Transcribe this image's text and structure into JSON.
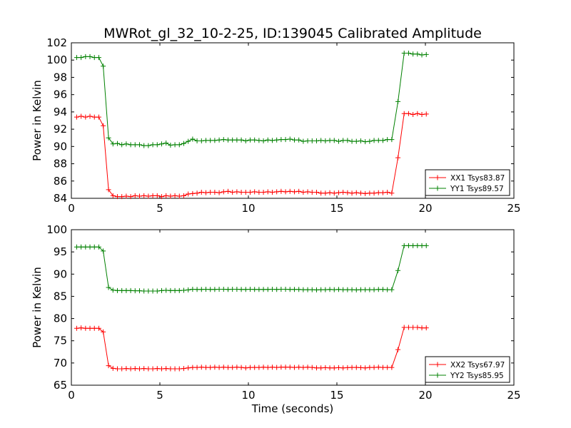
{
  "title": "MWRot_gl_32_10-2-25, ID:139045 Calibrated Amplitude",
  "colors": {
    "xx": "#ff0000",
    "yy": "#008000",
    "axes": "#000000"
  },
  "chart_data": [
    {
      "type": "line",
      "title": "MWRot_gl_32_10-2-25, ID:139045 Calibrated Amplitude",
      "xlabel": "",
      "ylabel": "Power in Kelvin",
      "xlim": [
        0,
        25
      ],
      "ylim": [
        84,
        102
      ],
      "xticks": [
        0,
        5,
        10,
        15,
        20,
        25
      ],
      "xtick_labels": [
        "0",
        "5",
        "10",
        "15",
        "20",
        "25"
      ],
      "yticks": [
        84,
        86,
        88,
        90,
        92,
        94,
        96,
        98,
        100,
        102
      ],
      "ytick_labels": [
        "84",
        "86",
        "88",
        "90",
        "92",
        "94",
        "96",
        "98",
        "100",
        "102"
      ],
      "grid": false,
      "legend_position": "lower-right",
      "marker": "plus",
      "x": [
        0.3,
        0.55,
        0.8,
        1.05,
        1.3,
        1.55,
        1.8,
        2.1,
        2.35,
        2.6,
        2.85,
        3.1,
        3.35,
        3.6,
        3.85,
        4.1,
        4.35,
        4.6,
        4.85,
        5.1,
        5.35,
        5.6,
        5.85,
        6.1,
        6.35,
        6.6,
        6.85,
        7.1,
        7.35,
        7.6,
        7.85,
        8.1,
        8.35,
        8.6,
        8.85,
        9.1,
        9.35,
        9.6,
        9.85,
        10.1,
        10.35,
        10.6,
        10.85,
        11.1,
        11.35,
        11.6,
        11.85,
        12.1,
        12.35,
        12.6,
        12.85,
        13.1,
        13.35,
        13.6,
        13.85,
        14.1,
        14.35,
        14.6,
        14.85,
        15.1,
        15.35,
        15.6,
        15.85,
        16.1,
        16.35,
        16.6,
        16.85,
        17.1,
        17.35,
        17.6,
        17.85,
        18.1,
        18.45,
        18.8,
        19.05,
        19.3,
        19.55,
        19.8,
        20.05
      ],
      "series": [
        {
          "name": "XX1 Tsys83.87",
          "color": "#ff0000",
          "values": [
            93.4,
            93.5,
            93.4,
            93.5,
            93.4,
            93.4,
            92.4,
            85.0,
            84.3,
            84.2,
            84.2,
            84.25,
            84.2,
            84.3,
            84.25,
            84.3,
            84.25,
            84.3,
            84.3,
            84.2,
            84.3,
            84.25,
            84.3,
            84.25,
            84.3,
            84.5,
            84.55,
            84.6,
            84.7,
            84.65,
            84.7,
            84.7,
            84.65,
            84.75,
            84.8,
            84.7,
            84.75,
            84.7,
            84.7,
            84.7,
            84.75,
            84.7,
            84.7,
            84.75,
            84.7,
            84.75,
            84.8,
            84.75,
            84.8,
            84.75,
            84.8,
            84.7,
            84.75,
            84.7,
            84.7,
            84.6,
            84.6,
            84.65,
            84.6,
            84.65,
            84.7,
            84.65,
            84.6,
            84.65,
            84.6,
            84.55,
            84.6,
            84.6,
            84.65,
            84.65,
            84.7,
            84.6,
            88.7,
            93.8,
            93.8,
            93.7,
            93.8,
            93.7,
            93.75
          ]
        },
        {
          "name": "YY1 Tsys89.57",
          "color": "#008000",
          "values": [
            100.3,
            100.3,
            100.4,
            100.4,
            100.3,
            100.3,
            99.3,
            91.0,
            90.3,
            90.35,
            90.2,
            90.3,
            90.2,
            90.2,
            90.2,
            90.1,
            90.1,
            90.2,
            90.2,
            90.3,
            90.4,
            90.15,
            90.2,
            90.2,
            90.35,
            90.6,
            90.85,
            90.65,
            90.65,
            90.7,
            90.7,
            90.7,
            90.75,
            90.8,
            90.75,
            90.75,
            90.75,
            90.75,
            90.65,
            90.75,
            90.75,
            90.7,
            90.65,
            90.75,
            90.7,
            90.75,
            90.8,
            90.8,
            90.85,
            90.75,
            90.75,
            90.6,
            90.65,
            90.65,
            90.65,
            90.7,
            90.65,
            90.7,
            90.7,
            90.6,
            90.7,
            90.7,
            90.6,
            90.6,
            90.65,
            90.55,
            90.6,
            90.7,
            90.7,
            90.7,
            90.8,
            90.8,
            95.2,
            100.8,
            100.8,
            100.7,
            100.7,
            100.6,
            100.65
          ]
        }
      ]
    },
    {
      "type": "line",
      "title": "",
      "xlabel": "Time (seconds)",
      "ylabel": "Power in Kelvin",
      "xlim": [
        0,
        25
      ],
      "ylim": [
        65,
        100
      ],
      "xticks": [
        0,
        5,
        10,
        15,
        20,
        25
      ],
      "xtick_labels": [
        "0",
        "5",
        "10",
        "15",
        "20",
        "25"
      ],
      "yticks": [
        65,
        70,
        75,
        80,
        85,
        90,
        95,
        100
      ],
      "ytick_labels": [
        "65",
        "70",
        "75",
        "80",
        "85",
        "90",
        "95",
        "100"
      ],
      "grid": false,
      "legend_position": "lower-right",
      "marker": "plus",
      "x": [
        0.3,
        0.55,
        0.8,
        1.05,
        1.3,
        1.55,
        1.8,
        2.1,
        2.35,
        2.6,
        2.85,
        3.1,
        3.35,
        3.6,
        3.85,
        4.1,
        4.35,
        4.6,
        4.85,
        5.1,
        5.35,
        5.6,
        5.85,
        6.1,
        6.35,
        6.6,
        6.85,
        7.1,
        7.35,
        7.6,
        7.85,
        8.1,
        8.35,
        8.6,
        8.85,
        9.1,
        9.35,
        9.6,
        9.85,
        10.1,
        10.35,
        10.6,
        10.85,
        11.1,
        11.35,
        11.6,
        11.85,
        12.1,
        12.35,
        12.6,
        12.85,
        13.1,
        13.35,
        13.6,
        13.85,
        14.1,
        14.35,
        14.6,
        14.85,
        15.1,
        15.35,
        15.6,
        15.85,
        16.1,
        16.35,
        16.6,
        16.85,
        17.1,
        17.35,
        17.6,
        17.85,
        18.1,
        18.45,
        18.8,
        19.05,
        19.3,
        19.55,
        19.8,
        20.05
      ],
      "series": [
        {
          "name": "XX2 Tsys67.97",
          "color": "#ff0000",
          "values": [
            77.8,
            77.9,
            77.8,
            77.8,
            77.8,
            77.8,
            77.0,
            69.4,
            68.8,
            68.7,
            68.7,
            68.75,
            68.7,
            68.75,
            68.7,
            68.75,
            68.7,
            68.7,
            68.75,
            68.7,
            68.75,
            68.7,
            68.7,
            68.7,
            68.75,
            68.9,
            69.0,
            69.0,
            69.05,
            69.0,
            69.0,
            69.05,
            69.0,
            69.05,
            69.0,
            69.0,
            69.05,
            69.0,
            68.9,
            69.0,
            69.0,
            69.0,
            69.05,
            69.0,
            69.05,
            69.0,
            69.05,
            69.05,
            69.05,
            69.0,
            69.05,
            69.0,
            69.05,
            69.0,
            68.9,
            68.9,
            68.95,
            68.9,
            68.9,
            68.95,
            68.9,
            68.95,
            69.0,
            69.0,
            68.95,
            68.9,
            69.0,
            69.0,
            69.05,
            69.0,
            69.0,
            69.0,
            73.0,
            78.0,
            78.0,
            78.0,
            78.0,
            77.9,
            77.9
          ]
        },
        {
          "name": "YY2 Tsys85.95",
          "color": "#008000",
          "values": [
            96.1,
            96.1,
            96.1,
            96.1,
            96.1,
            96.1,
            95.2,
            87.0,
            86.4,
            86.3,
            86.3,
            86.3,
            86.3,
            86.25,
            86.25,
            86.2,
            86.2,
            86.2,
            86.2,
            86.3,
            86.35,
            86.3,
            86.3,
            86.3,
            86.35,
            86.45,
            86.6,
            86.55,
            86.55,
            86.6,
            86.55,
            86.55,
            86.6,
            86.6,
            86.55,
            86.6,
            86.6,
            86.55,
            86.55,
            86.6,
            86.55,
            86.55,
            86.55,
            86.55,
            86.6,
            86.55,
            86.6,
            86.6,
            86.55,
            86.55,
            86.55,
            86.5,
            86.5,
            86.5,
            86.45,
            86.5,
            86.5,
            86.55,
            86.5,
            86.55,
            86.5,
            86.5,
            86.5,
            86.45,
            86.5,
            86.5,
            86.5,
            86.5,
            86.55,
            86.55,
            86.5,
            86.5,
            90.8,
            96.4,
            96.4,
            96.4,
            96.4,
            96.4,
            96.4
          ]
        }
      ]
    }
  ]
}
